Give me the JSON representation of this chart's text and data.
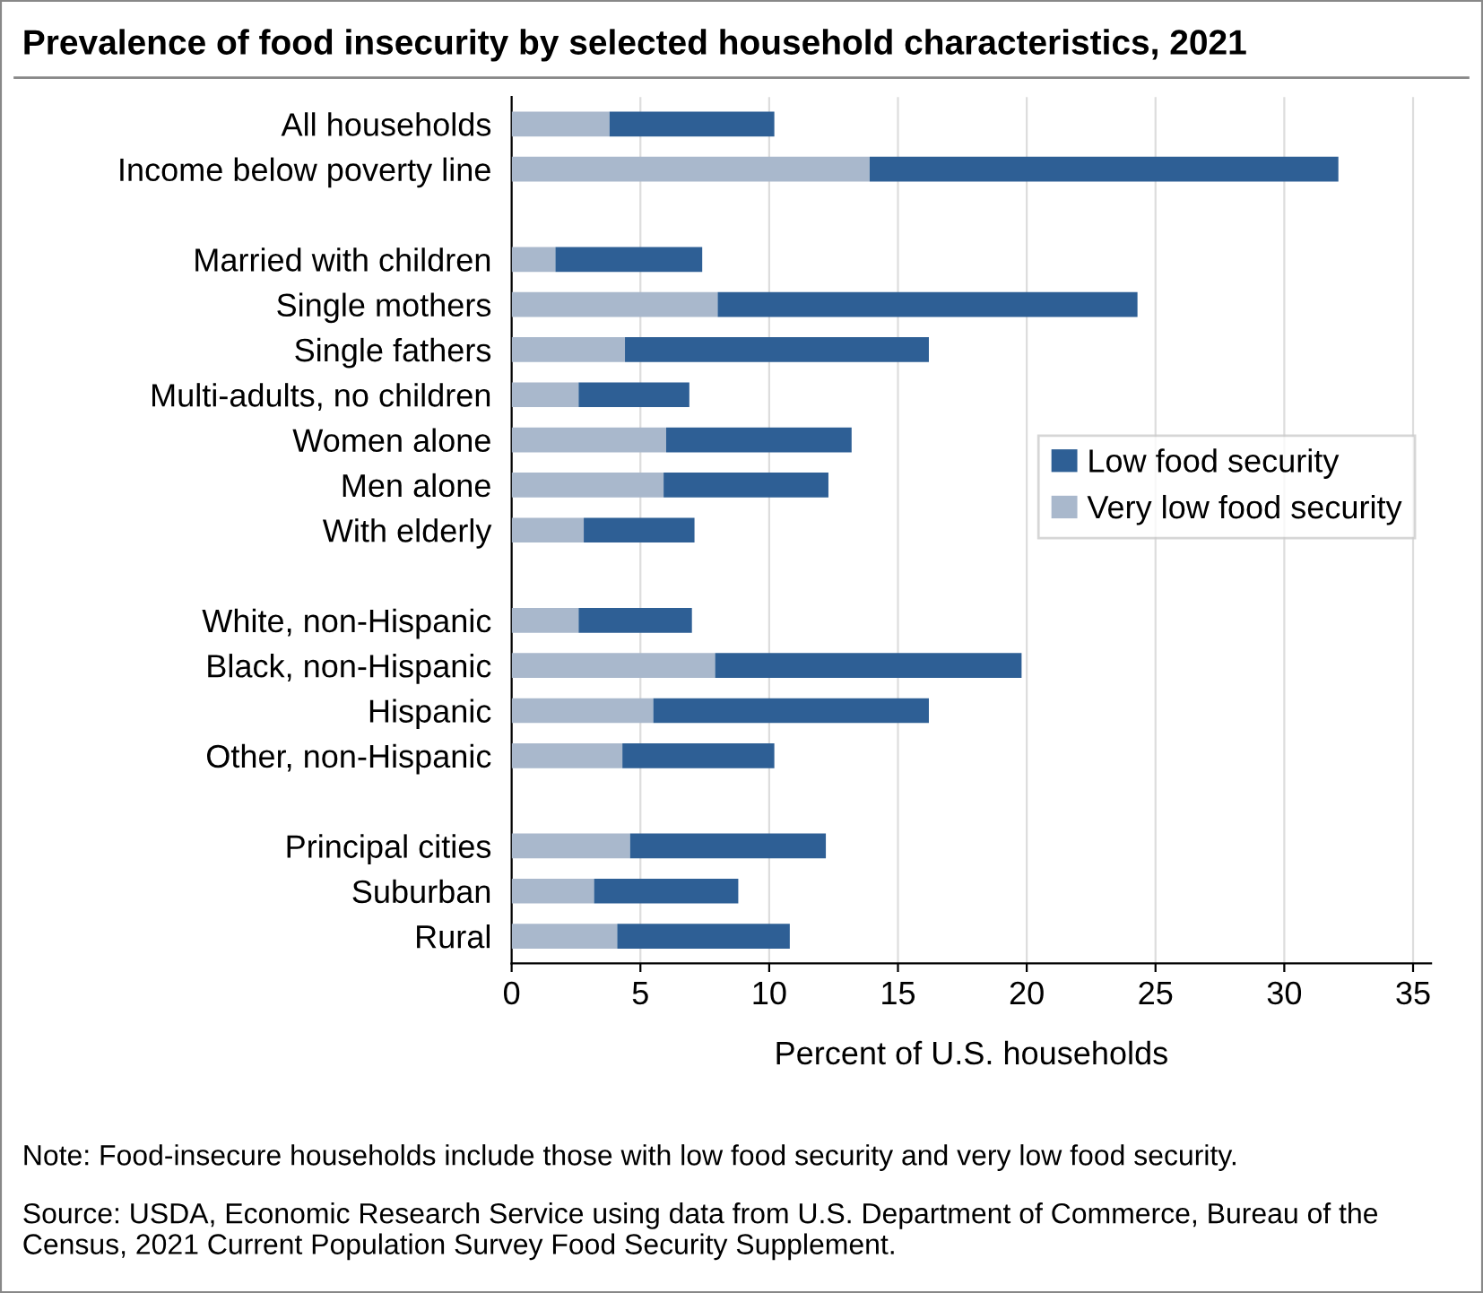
{
  "chart_data": {
    "type": "bar",
    "orientation": "horizontal",
    "stacked": true,
    "title": "Prevalence of food insecurity by selected household characteristics, 2021",
    "xlabel": "Percent of U.S. households",
    "categories": [
      "All households",
      "Income below poverty line",
      null,
      "Married with children",
      "Single mothers",
      "Single fathers",
      "Multi-adults, no children",
      "Women alone",
      "Men alone",
      "With elderly",
      null,
      "White, non-Hispanic",
      "Black, non-Hispanic",
      "Hispanic",
      "Other, non-Hispanic",
      null,
      "Principal cities",
      "Suburban",
      "Rural"
    ],
    "series": [
      {
        "name": "Very low food security",
        "color": "#a9b8cc",
        "values": [
          3.8,
          13.9,
          null,
          1.7,
          8.0,
          4.4,
          2.6,
          6.0,
          5.9,
          2.8,
          null,
          2.6,
          7.9,
          5.5,
          4.3,
          null,
          4.6,
          3.2,
          4.1
        ]
      },
      {
        "name": "Low food security",
        "color": "#2e5f95",
        "values": [
          6.4,
          18.2,
          null,
          5.7,
          16.3,
          11.8,
          4.3,
          7.2,
          6.4,
          4.3,
          null,
          4.4,
          11.9,
          10.7,
          5.9,
          null,
          7.6,
          5.6,
          6.7
        ]
      }
    ],
    "xlim": [
      0,
      35.7
    ],
    "xticks": [
      0,
      5,
      10,
      15,
      20,
      25,
      30,
      35
    ],
    "grid": "x",
    "legend": "right",
    "annotations": [
      "Note: Food-insecure households include those with low food security and very low food security.",
      "Source: USDA, Economic Research Service using data from U.S. Department of Commerce, Bureau of the Census, 2021 Current Population Survey Food Security Supplement."
    ]
  }
}
